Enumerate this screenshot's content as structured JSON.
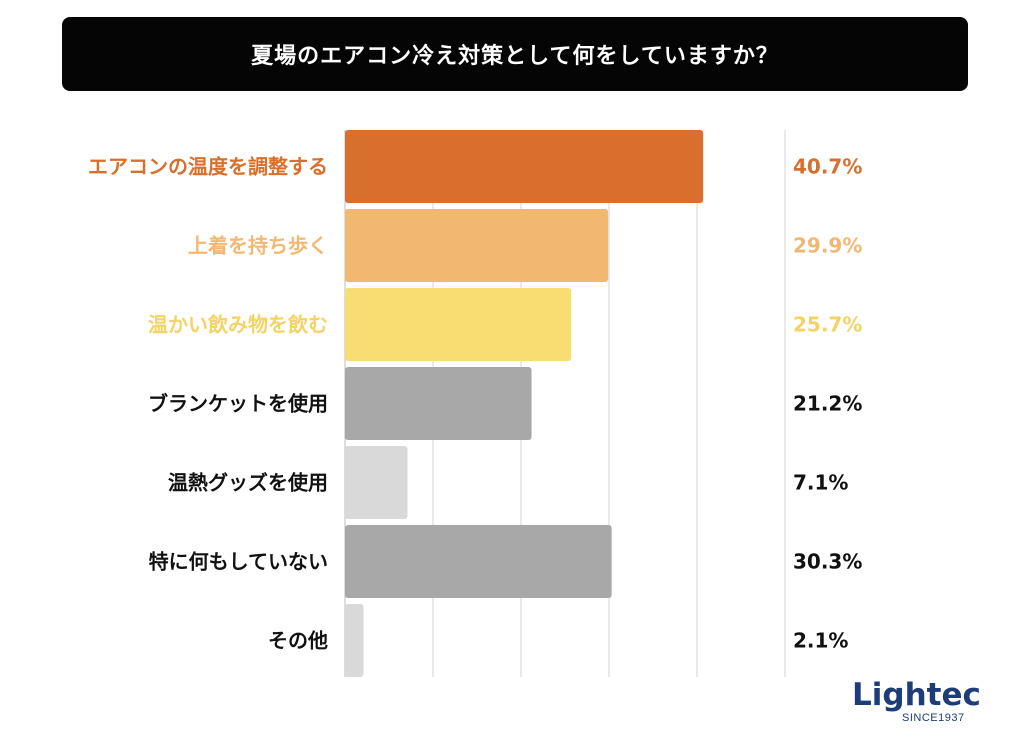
{
  "header": {
    "title": "夏場のエアコン冷え対策として何をしていますか？"
  },
  "logo": {
    "wordmark": "Lightec",
    "tagline": "SINCE1937"
  },
  "chart_data": {
    "type": "bar",
    "orientation": "horizontal",
    "title": "夏場のエアコン冷え対策として何をしていますか？",
    "xlabel": "",
    "ylabel": "",
    "xlim": [
      0,
      50
    ],
    "grid": true,
    "categories": [
      "エアコンの温度を調整する",
      "上着を持ち歩く",
      "温かい飲み物を飲む",
      "ブランケットを使用",
      "温熱グッズを使用",
      "特に何もしていない",
      "その他"
    ],
    "values": [
      40.7,
      29.9,
      25.7,
      21.2,
      7.1,
      30.3,
      2.1
    ],
    "value_labels": [
      "40.7%",
      "29.9%",
      "25.7%",
      "21.2%",
      "7.1%",
      "30.3%",
      "2.1%"
    ],
    "bar_colors": [
      "#d86f2c",
      "#f2b872",
      "#f8dd72",
      "#a8a8a8",
      "#d9d9d9",
      "#a8a8a8",
      "#d9d9d9"
    ],
    "label_colors": [
      "#d86f2c",
      "#f2b872",
      "#f5d264",
      "#111111",
      "#111111",
      "#111111",
      "#111111"
    ]
  }
}
